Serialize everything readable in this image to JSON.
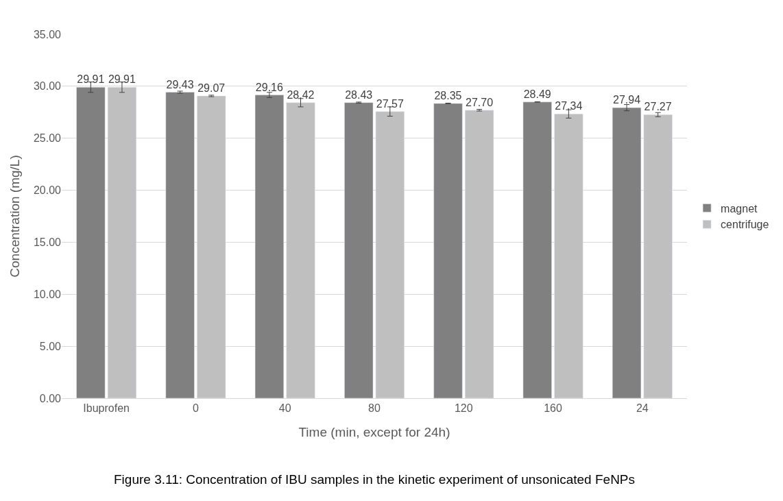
{
  "chart_data": {
    "type": "bar",
    "xlabel": "Time (min, except for 24h)",
    "ylabel": "Concentration (mg/L)",
    "categories": [
      "Ibuprofen",
      "0",
      "40",
      "80",
      "120",
      "160",
      "24"
    ],
    "series": [
      {
        "name": "magnet",
        "color": "#808080",
        "values": [
          29.91,
          29.43,
          29.16,
          28.43,
          28.35,
          28.49,
          27.94
        ],
        "errors": [
          0.5,
          0.1,
          0.25,
          0.05,
          0.03,
          0.02,
          0.3
        ]
      },
      {
        "name": "centrifuge",
        "color": "#bfbfbf",
        "values": [
          29.91,
          29.07,
          28.42,
          27.57,
          27.7,
          27.34,
          27.27
        ],
        "errors": [
          0.5,
          0.07,
          0.4,
          0.45,
          0.08,
          0.4,
          0.2
        ]
      }
    ],
    "value_labels": [
      [
        "29.91",
        "29.43",
        "29.16",
        "28.43",
        "28.35",
        "28.49",
        "27.94"
      ],
      [
        "29.91",
        "29.07",
        "28.42",
        "27.57",
        "27.70",
        "27.34",
        "27.27"
      ]
    ],
    "ylim": [
      0,
      35
    ],
    "yticks": [
      {
        "value": 0,
        "label": "0.00"
      },
      {
        "value": 5,
        "label": "5.00"
      },
      {
        "value": 10,
        "label": "10.00"
      },
      {
        "value": 15,
        "label": "15.00"
      },
      {
        "value": 20,
        "label": "20.00"
      },
      {
        "value": 25,
        "label": "25.00"
      },
      {
        "value": 30,
        "label": "30.00"
      },
      {
        "value": 35,
        "label": "35.00"
      }
    ],
    "grid": "y",
    "legend": "right",
    "annotations": [
      "Figure 3.11: Concentration of IBU samples in the kinetic experiment of unsonicated FeNPs"
    ]
  }
}
